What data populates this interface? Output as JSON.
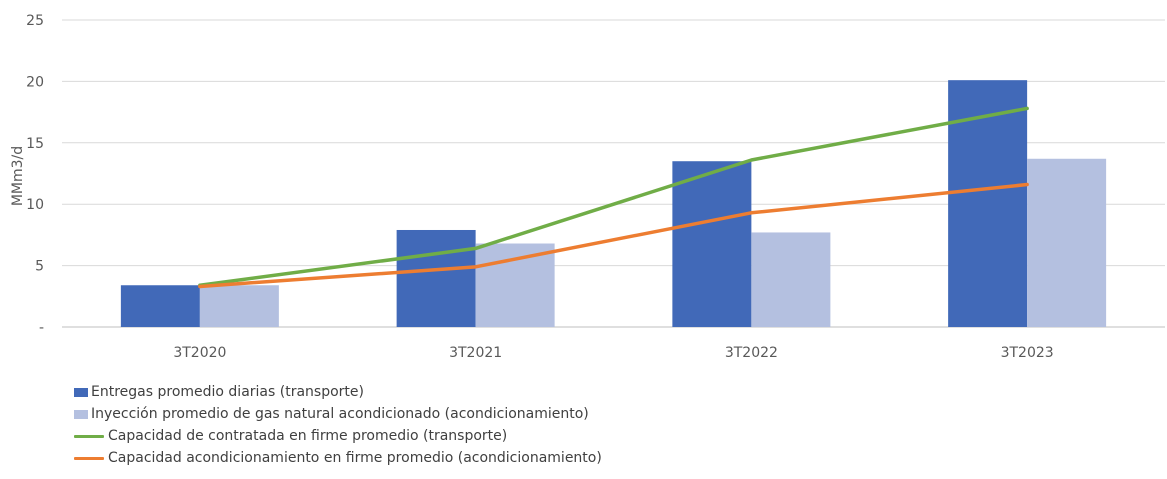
{
  "chart_data": {
    "type": "bar",
    "categories": [
      "3T2020",
      "3T2021",
      "3T2022",
      "3T2023"
    ],
    "ylabel": "MMm3/d",
    "ylim": [
      0,
      25
    ],
    "yticks": [
      0,
      5,
      10,
      15,
      20,
      25
    ],
    "ytick_labels": [
      "-",
      "5",
      "10",
      "15",
      "20",
      "25"
    ],
    "grid": true,
    "legend_position": "bottom-left",
    "series": [
      {
        "name": "Entregas promedio diarias (transporte)",
        "kind": "bar",
        "color": "#4169b8",
        "values": [
          3.4,
          7.9,
          13.5,
          20.1
        ]
      },
      {
        "name": "Inyección promedio de gas natural acondicionado (acondicionamiento)",
        "kind": "bar",
        "color": "#b4c0e0",
        "values": [
          3.4,
          6.8,
          7.7,
          13.7
        ]
      },
      {
        "name": "Capacidad de contratada en firme promedio (transporte)",
        "kind": "line",
        "color": "#70ad47",
        "values": [
          3.4,
          6.4,
          13.6,
          17.8
        ]
      },
      {
        "name": "Capacidad acondicionamiento en firme promedio (acondicionamiento)",
        "kind": "line",
        "color": "#ed7d31",
        "values": [
          3.3,
          4.9,
          9.3,
          11.6
        ]
      }
    ]
  }
}
